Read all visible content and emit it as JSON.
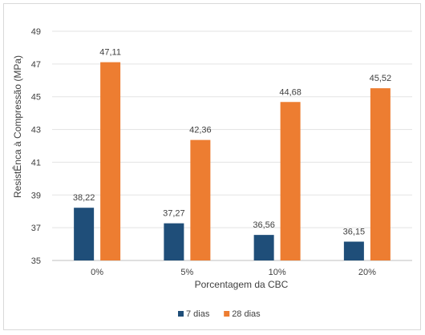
{
  "chart_data": {
    "type": "bar",
    "categories": [
      "0%",
      "5%",
      "10%",
      "20%"
    ],
    "series": [
      {
        "name": "7 dias",
        "values": [
          38.22,
          37.27,
          36.56,
          36.15
        ],
        "labels": [
          "38,22",
          "37,27",
          "36,56",
          "36,15"
        ],
        "color": "#1f4e79"
      },
      {
        "name": "28 dias",
        "values": [
          47.11,
          42.36,
          44.68,
          45.52
        ],
        "labels": [
          "47,11",
          "42,36",
          "44,68",
          "45,52"
        ],
        "color": "#ed7d31"
      }
    ],
    "xlabel": "Porcentagem da CBC",
    "ylabel": "ResistÊnca à Compressão (MPa)",
    "ylim": [
      35,
      49
    ],
    "yticks": [
      "35",
      "37",
      "39",
      "41",
      "43",
      "45",
      "47",
      "49"
    ],
    "grid": true,
    "legend_position": "bottom"
  }
}
